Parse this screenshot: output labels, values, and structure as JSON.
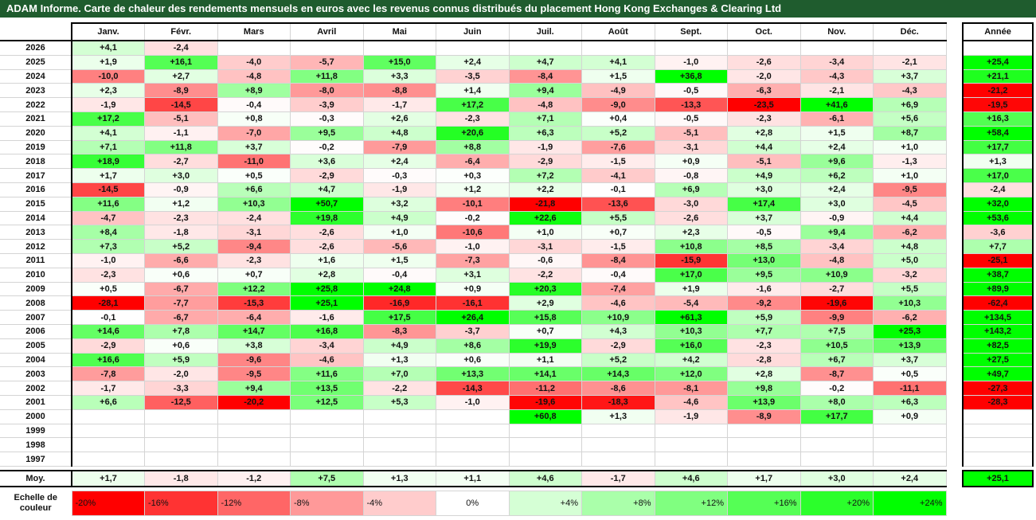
{
  "chart_data": {
    "type": "heatmap",
    "title": "ADAM Informe. Carte de chaleur des rendements mensuels en euros avec les revenus connus distribués du placement Hong Kong Exchanges & Clearing Ltd",
    "months": [
      "Janv.",
      "Févr.",
      "Mars",
      "Avril",
      "Mai",
      "Juin",
      "Juil.",
      "Août",
      "Sept.",
      "Oct.",
      "Nov.",
      "Déc."
    ],
    "year_col_label": "Année",
    "rows": [
      {
        "year": "2026",
        "values": [
          "+4,1",
          "-2,4",
          "",
          "",
          "",
          "",
          "",
          "",
          "",
          "",
          "",
          ""
        ],
        "annual": ""
      },
      {
        "year": "2025",
        "values": [
          "+1,9",
          "+16,1",
          "-4,0",
          "-5,7",
          "+15,0",
          "+2,4",
          "+4,7",
          "+4,1",
          "-1,0",
          "-2,6",
          "-3,4",
          "-2,1"
        ],
        "annual": "+25,4"
      },
      {
        "year": "2024",
        "values": [
          "-10,0",
          "+2,7",
          "-4,8",
          "+11,8",
          "+3,3",
          "-3,5",
          "-8,4",
          "+1,5",
          "+36,8",
          "-2,0",
          "-4,3",
          "+3,7"
        ],
        "annual": "+21,1"
      },
      {
        "year": "2023",
        "values": [
          "+2,3",
          "-8,9",
          "+8,9",
          "-8,0",
          "-8,8",
          "+1,4",
          "+9,4",
          "-4,9",
          "-0,5",
          "-6,3",
          "-2,1",
          "-4,3"
        ],
        "annual": "-21,2"
      },
      {
        "year": "2022",
        "values": [
          "-1,9",
          "-14,5",
          "-0,4",
          "-3,9",
          "-1,7",
          "+17,2",
          "-4,8",
          "-9,0",
          "-13,3",
          "-23,5",
          "+41,6",
          "+6,9"
        ],
        "annual": "-19,5"
      },
      {
        "year": "2021",
        "values": [
          "+17,2",
          "-5,1",
          "+0,8",
          "-0,3",
          "+2,6",
          "-2,3",
          "+7,1",
          "+0,4",
          "-0,5",
          "-2,3",
          "-6,1",
          "+5,6"
        ],
        "annual": "+16,3"
      },
      {
        "year": "2020",
        "values": [
          "+4,1",
          "-1,1",
          "-7,0",
          "+9,5",
          "+4,8",
          "+20,6",
          "+6,3",
          "+5,2",
          "-5,1",
          "+2,8",
          "+1,5",
          "+8,7"
        ],
        "annual": "+58,4"
      },
      {
        "year": "2019",
        "values": [
          "+7,1",
          "+11,8",
          "+3,7",
          "-0,2",
          "-7,9",
          "+8,8",
          "-1,9",
          "-7,6",
          "-3,1",
          "+4,4",
          "+2,4",
          "+1,0"
        ],
        "annual": "+17,7"
      },
      {
        "year": "2018",
        "values": [
          "+18,9",
          "-2,7",
          "-11,0",
          "+3,6",
          "+2,4",
          "-6,4",
          "-2,9",
          "-1,5",
          "+0,9",
          "-5,1",
          "+9,6",
          "-1,3"
        ],
        "annual": "+1,3"
      },
      {
        "year": "2017",
        "values": [
          "+1,7",
          "+3,0",
          "+0,5",
          "-2,9",
          "-0,3",
          "+0,3",
          "+7,2",
          "-4,1",
          "-0,8",
          "+4,9",
          "+6,2",
          "+1,0"
        ],
        "annual": "+17,0"
      },
      {
        "year": "2016",
        "values": [
          "-14,5",
          "-0,9",
          "+6,6",
          "+4,7",
          "-1,9",
          "+1,2",
          "+2,2",
          "-0,1",
          "+6,9",
          "+3,0",
          "+2,4",
          "-9,5"
        ],
        "annual": "-2,4"
      },
      {
        "year": "2015",
        "values": [
          "+11,6",
          "+1,2",
          "+10,3",
          "+50,7",
          "+3,2",
          "-10,1",
          "-21,8",
          "-13,6",
          "-3,0",
          "+17,4",
          "+3,0",
          "-4,5"
        ],
        "annual": "+32,0"
      },
      {
        "year": "2014",
        "values": [
          "-4,7",
          "-2,3",
          "-2,4",
          "+19,8",
          "+4,9",
          "-0,2",
          "+22,6",
          "+5,5",
          "-2,6",
          "+3,7",
          "-0,9",
          "+4,4"
        ],
        "annual": "+53,6"
      },
      {
        "year": "2013",
        "values": [
          "+8,4",
          "-1,8",
          "-3,1",
          "-2,6",
          "+1,0",
          "-10,6",
          "+1,0",
          "+0,7",
          "+2,3",
          "-0,5",
          "+9,4",
          "-6,2"
        ],
        "annual": "-3,6"
      },
      {
        "year": "2012",
        "values": [
          "+7,3",
          "+5,2",
          "-9,4",
          "-2,6",
          "-5,6",
          "-1,0",
          "-3,1",
          "-1,5",
          "+10,8",
          "+8,5",
          "-3,4",
          "+4,8"
        ],
        "annual": "+7,7"
      },
      {
        "year": "2011",
        "values": [
          "-1,0",
          "-6,6",
          "-2,3",
          "+1,6",
          "+1,5",
          "-7,3",
          "-0,6",
          "-8,4",
          "-15,9",
          "+13,0",
          "-4,8",
          "+5,0"
        ],
        "annual": "-25,1"
      },
      {
        "year": "2010",
        "values": [
          "-2,3",
          "+0,6",
          "+0,7",
          "+2,8",
          "-0,4",
          "+3,1",
          "-2,2",
          "-0,4",
          "+17,0",
          "+9,5",
          "+10,9",
          "-3,2"
        ],
        "annual": "+38,7"
      },
      {
        "year": "2009",
        "values": [
          "+0,5",
          "-6,7",
          "+12,2",
          "+25,8",
          "+24,8",
          "+0,9",
          "+20,3",
          "-7,4",
          "+1,9",
          "-1,6",
          "-2,7",
          "+5,5"
        ],
        "annual": "+89,9"
      },
      {
        "year": "2008",
        "values": [
          "-28,1",
          "-7,7",
          "-15,3",
          "+25,1",
          "-16,9",
          "-16,1",
          "+2,9",
          "-4,6",
          "-5,4",
          "-9,2",
          "-19,6",
          "+10,3"
        ],
        "annual": "-62,4"
      },
      {
        "year": "2007",
        "values": [
          "-0,1",
          "-6,7",
          "-6,4",
          "-1,6",
          "+17,5",
          "+26,4",
          "+15,8",
          "+10,9",
          "+61,3",
          "+5,9",
          "-9,9",
          "-6,2"
        ],
        "annual": "+134,5"
      },
      {
        "year": "2006",
        "values": [
          "+14,6",
          "+7,8",
          "+14,7",
          "+16,8",
          "-8,3",
          "-3,7",
          "+0,7",
          "+4,3",
          "+10,3",
          "+7,7",
          "+7,5",
          "+25,3"
        ],
        "annual": "+143,2"
      },
      {
        "year": "2005",
        "values": [
          "-2,9",
          "+0,6",
          "+3,8",
          "-3,4",
          "+4,9",
          "+8,6",
          "+19,9",
          "-2,9",
          "+16,0",
          "-2,3",
          "+10,5",
          "+13,9"
        ],
        "annual": "+82,5"
      },
      {
        "year": "2004",
        "values": [
          "+16,6",
          "+5,9",
          "-9,6",
          "-4,6",
          "+1,3",
          "+0,6",
          "+1,1",
          "+5,2",
          "+4,2",
          "-2,8",
          "+6,7",
          "+3,7"
        ],
        "annual": "+27,5"
      },
      {
        "year": "2003",
        "values": [
          "-7,8",
          "-2,0",
          "-9,5",
          "+11,6",
          "+7,0",
          "+13,3",
          "+14,1",
          "+14,3",
          "+12,0",
          "+2,8",
          "-8,7",
          "+0,5"
        ],
        "annual": "+49,7"
      },
      {
        "year": "2002",
        "values": [
          "-1,7",
          "-3,3",
          "+9,4",
          "+13,5",
          "-2,2",
          "-14,3",
          "-11,2",
          "-8,6",
          "-8,1",
          "+9,8",
          "-0,2",
          "-11,1"
        ],
        "annual": "-27,3"
      },
      {
        "year": "2001",
        "values": [
          "+6,6",
          "-12,5",
          "-20,2",
          "+12,5",
          "+5,3",
          "-1,0",
          "-19,6",
          "-18,3",
          "-4,6",
          "+13,9",
          "+8,0",
          "+6,3"
        ],
        "annual": "-28,3"
      },
      {
        "year": "2000",
        "values": [
          "",
          "",
          "",
          "",
          "",
          "",
          "+60,8",
          "+1,3",
          "-1,9",
          "-8,9",
          "+17,7",
          "+0,9"
        ],
        "annual": ""
      },
      {
        "year": "1999",
        "values": [
          "",
          "",
          "",
          "",
          "",
          "",
          "",
          "",
          "",
          "",
          "",
          ""
        ],
        "annual": ""
      },
      {
        "year": "1998",
        "values": [
          "",
          "",
          "",
          "",
          "",
          "",
          "",
          "",
          "",
          "",
          "",
          ""
        ],
        "annual": ""
      },
      {
        "year": "1997",
        "values": [
          "",
          "",
          "",
          "",
          "",
          "",
          "",
          "",
          "",
          "",
          "",
          ""
        ],
        "annual": ""
      }
    ],
    "average": {
      "label": "Moy.",
      "values": [
        "+1,7",
        "-1,8",
        "-1,2",
        "+7,5",
        "+1,3",
        "+1,1",
        "+4,6",
        "-1,7",
        "+4,6",
        "+1,7",
        "+3,0",
        "+2,4"
      ],
      "annual": "+25,1"
    },
    "scale": {
      "label": "Echelle de couleur",
      "entries": [
        {
          "text": "-20%",
          "value": -20,
          "align": "left"
        },
        {
          "text": "-16%",
          "value": -16,
          "align": "left"
        },
        {
          "text": "-12%",
          "value": -12,
          "align": "left"
        },
        {
          "text": "-8%",
          "value": -8,
          "align": "left"
        },
        {
          "text": "-4%",
          "value": -4,
          "align": "left"
        },
        {
          "text": "0%",
          "value": 0,
          "align": "center"
        },
        {
          "text": "+4%",
          "value": 4,
          "align": "right"
        },
        {
          "text": "+8%",
          "value": 8,
          "align": "right"
        },
        {
          "text": "+12%",
          "value": 12,
          "align": "right"
        },
        {
          "text": "+16%",
          "value": 16,
          "align": "right"
        },
        {
          "text": "+20%",
          "value": 20,
          "align": "right"
        },
        {
          "text": "+24%",
          "value": 24,
          "align": "right"
        }
      ]
    },
    "colors": {
      "negative_max": "#ff0000",
      "neutral": "#ffffff",
      "positive_max": "#00ff00",
      "title_bg": "#1f5c2e"
    }
  }
}
